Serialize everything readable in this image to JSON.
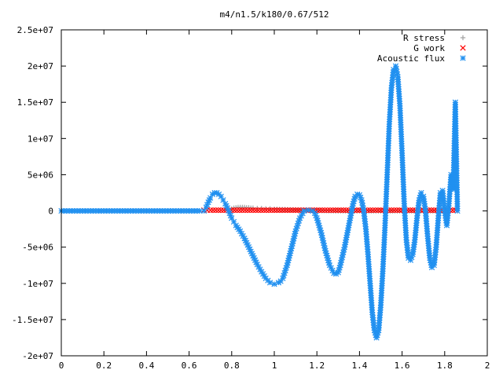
{
  "chart_data": {
    "type": "scatter",
    "title": "m4/n1.5/k180/0.67/512",
    "xlabel": "",
    "ylabel": "",
    "xlim": [
      0,
      2
    ],
    "ylim": [
      -20000000,
      25000000
    ],
    "x_ticks": [
      {
        "value": 0,
        "label": "0"
      },
      {
        "value": 0.2,
        "label": "0.2"
      },
      {
        "value": 0.4,
        "label": "0.4"
      },
      {
        "value": 0.6,
        "label": "0.6"
      },
      {
        "value": 0.8,
        "label": "0.8"
      },
      {
        "value": 1.0,
        "label": "1"
      },
      {
        "value": 1.2,
        "label": "1.2"
      },
      {
        "value": 1.4,
        "label": "1.4"
      },
      {
        "value": 1.6,
        "label": "1.6"
      },
      {
        "value": 1.8,
        "label": "1.8"
      },
      {
        "value": 2.0,
        "label": "2"
      }
    ],
    "y_ticks": [
      {
        "value": 25000000,
        "label": "2.5e+07"
      },
      {
        "value": 20000000,
        "label": "2e+07"
      },
      {
        "value": 15000000,
        "label": "1.5e+07"
      },
      {
        "value": 10000000,
        "label": "1e+07"
      },
      {
        "value": 5000000,
        "label": "5e+06"
      },
      {
        "value": 0,
        "label": "0"
      },
      {
        "value": -5000000,
        "label": "-5e+06"
      },
      {
        "value": -10000000,
        "label": "-1e+07"
      },
      {
        "value": -15000000,
        "label": "-1.5e+07"
      },
      {
        "value": -20000000,
        "label": "-2e+07"
      }
    ],
    "grid": false,
    "legend_position": "top-right",
    "series": [
      {
        "name": "R stress",
        "marker": "plus",
        "color": "#a0a0a0",
        "x": [
          0.8,
          0.81,
          0.82,
          0.83,
          0.84,
          0.85,
          0.86,
          0.87,
          0.88,
          0.89,
          0.9,
          0.92,
          0.94,
          0.96,
          0.98,
          1.0,
          1.05,
          1.1,
          1.15,
          1.2,
          1.3,
          1.4,
          1.5,
          1.6,
          1.7,
          1.8
        ],
        "y": [
          300000,
          400000,
          450000,
          500000,
          500000,
          500000,
          500000,
          450000,
          450000,
          400000,
          400000,
          350000,
          350000,
          300000,
          300000,
          250000,
          200000,
          150000,
          100000,
          50000,
          0,
          0,
          0,
          0,
          0,
          0
        ]
      },
      {
        "name": "G work",
        "marker": "cross",
        "color": "#ff0000",
        "x": [
          0.67,
          0.7,
          0.75,
          0.8,
          0.85,
          0.9,
          0.95,
          1.0,
          1.05,
          1.1,
          1.15,
          1.2,
          1.25,
          1.3,
          1.35,
          1.4,
          1.45,
          1.5,
          1.55,
          1.6,
          1.65,
          1.7,
          1.75,
          1.8,
          1.85
        ],
        "y": [
          100000,
          100000,
          100000,
          100000,
          100000,
          100000,
          100000,
          100000,
          100000,
          100000,
          100000,
          100000,
          100000,
          100000,
          100000,
          100000,
          100000,
          100000,
          100000,
          100000,
          100000,
          100000,
          100000,
          100000,
          100000
        ]
      },
      {
        "name": "Acoustic flux",
        "marker": "star",
        "color": "#2090f0",
        "x": [
          0.0,
          0.05,
          0.1,
          0.15,
          0.2,
          0.25,
          0.3,
          0.35,
          0.4,
          0.45,
          0.5,
          0.55,
          0.6,
          0.65,
          0.67,
          0.68,
          0.69,
          0.7,
          0.71,
          0.72,
          0.73,
          0.74,
          0.75,
          0.76,
          0.77,
          0.78,
          0.79,
          0.8,
          0.81,
          0.82,
          0.84,
          0.86,
          0.88,
          0.9,
          0.92,
          0.94,
          0.96,
          0.98,
          1.0,
          1.02,
          1.03,
          1.04,
          1.06,
          1.08,
          1.1,
          1.12,
          1.14,
          1.16,
          1.18,
          1.19,
          1.2,
          1.22,
          1.24,
          1.26,
          1.28,
          1.29,
          1.3,
          1.31,
          1.33,
          1.35,
          1.37,
          1.38,
          1.39,
          1.4,
          1.41,
          1.42,
          1.43,
          1.44,
          1.45,
          1.46,
          1.47,
          1.48,
          1.49,
          1.5,
          1.51,
          1.52,
          1.53,
          1.54,
          1.55,
          1.56,
          1.57,
          1.58,
          1.59,
          1.6,
          1.61,
          1.62,
          1.63,
          1.64,
          1.65,
          1.66,
          1.67,
          1.68,
          1.69,
          1.7,
          1.71,
          1.72,
          1.73,
          1.74,
          1.75,
          1.76,
          1.77,
          1.78,
          1.79,
          1.8,
          1.81,
          1.82,
          1.83,
          1.84,
          1.85,
          1.86
        ],
        "y": [
          0,
          0,
          0,
          0,
          0,
          0,
          0,
          0,
          0,
          0,
          0,
          0,
          0,
          0,
          0,
          500000,
          1200000,
          1800000,
          2300000,
          2500000,
          2500000,
          2300000,
          2000000,
          1500000,
          1000000,
          400000,
          -300000,
          -1000000,
          -1500000,
          -2000000,
          -2800000,
          -3800000,
          -5000000,
          -6200000,
          -7400000,
          -8400000,
          -9300000,
          -9900000,
          -10100000,
          -9900000,
          -9700000,
          -9300000,
          -7500000,
          -5200000,
          -2800000,
          -1000000,
          0,
          100000,
          0,
          -300000,
          -1000000,
          -3000000,
          -5500000,
          -7500000,
          -8600000,
          -8700000,
          -8500000,
          -7500000,
          -5000000,
          -2000000,
          1000000,
          2000000,
          2300000,
          2200000,
          1500000,
          0,
          -2500000,
          -6000000,
          -10000000,
          -14000000,
          -16500000,
          -17500000,
          -16500000,
          -13000000,
          -8000000,
          -2000000,
          5000000,
          12000000,
          17000000,
          19500000,
          20000000,
          18500000,
          14500000,
          8000000,
          1000000,
          -4000000,
          -6500000,
          -6800000,
          -6000000,
          -4000000,
          -1000000,
          1500000,
          2500000,
          2000000,
          0,
          -3500000,
          -6500000,
          -7800000,
          -7500000,
          -5000000,
          -1000000,
          2500000,
          2800000,
          0,
          -2000000,
          1000000,
          5000000,
          3000000,
          15000000,
          0
        ]
      }
    ]
  }
}
